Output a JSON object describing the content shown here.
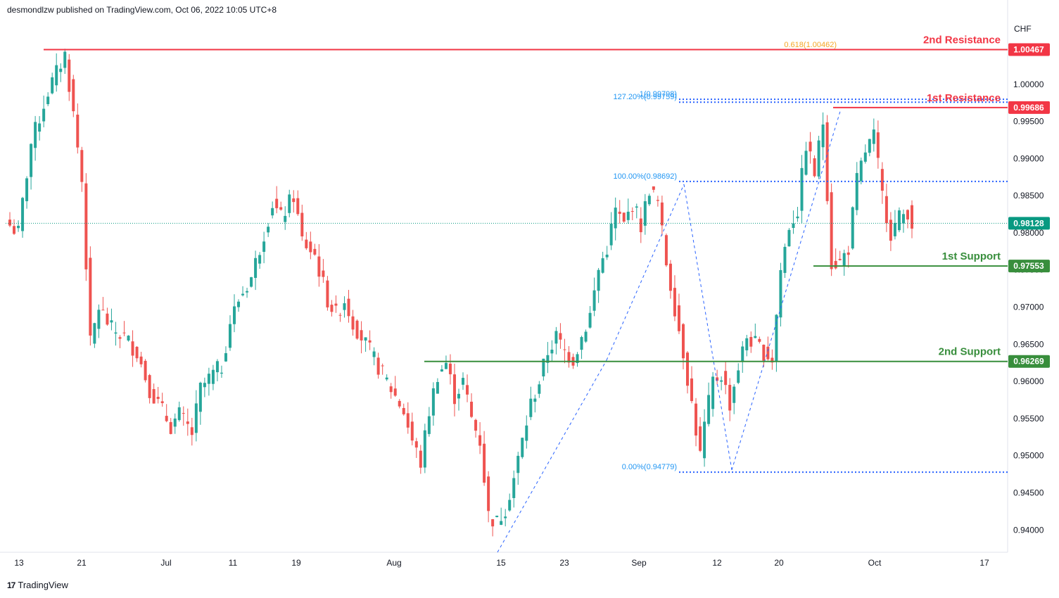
{
  "header": {
    "publisher": "desmondlzw published on TradingView.com, Oct 06, 2022 10:05 UTC+8"
  },
  "footer": {
    "brand": "TradingView",
    "logo_icon": "tradingview-logo-icon"
  },
  "colors": {
    "up": "#26a69a",
    "down": "#ef5350",
    "resistance": "#f23645",
    "support": "#388e3c",
    "fib": "#2962ff",
    "fib_text": "#2196f3",
    "fib618": "#f5a623",
    "price_label": "#089981"
  },
  "chart_data": {
    "type": "candlestick",
    "currency": "CHF",
    "y_ticks": [
      "1.00000",
      "0.99500",
      "0.99000",
      "0.98500",
      "0.98000",
      "0.97500",
      "0.97000",
      "0.96500",
      "0.96000",
      "0.95500",
      "0.95000",
      "0.94500",
      "0.94000"
    ],
    "x_ticks": [
      "13",
      "21",
      "Jul",
      "11",
      "19",
      "Aug",
      "15",
      "23",
      "Sep",
      "12",
      "20",
      "Oct",
      "17"
    ],
    "ylim": [
      0.937,
      1.0085
    ],
    "current_price": {
      "value": 0.98128,
      "label": "0.98128"
    },
    "levels": [
      {
        "name": "2nd Resistance",
        "value": 1.00467,
        "label": "1.00467",
        "kind": "resistance"
      },
      {
        "name": "1st Resistance",
        "value": 0.99686,
        "label": "0.99686",
        "kind": "resistance"
      },
      {
        "name": "1st Support",
        "value": 0.97553,
        "label": "0.97553",
        "kind": "support"
      },
      {
        "name": "2nd Support",
        "value": 0.96269,
        "label": "0.96269",
        "kind": "support"
      }
    ],
    "fib_annotations": [
      {
        "text": "0.618(1.00462)",
        "value": 1.00462
      },
      {
        "text": "1(0.99798)",
        "value": 0.99798
      },
      {
        "text": "127.20%(0.99759)",
        "value": 0.99759
      },
      {
        "text": "100.00%(0.98692)",
        "value": 0.98692
      },
      {
        "text": "0.00%(0.94779)",
        "value": 0.94779
      }
    ],
    "ohlc_anchors": [
      [
        0,
        0.981
      ],
      [
        2,
        0.98
      ],
      [
        5,
        0.992
      ],
      [
        9,
        0.999
      ],
      [
        13,
        1.004
      ],
      [
        15,
        0.996
      ],
      [
        17,
        0.987
      ],
      [
        19,
        0.965
      ],
      [
        21,
        0.97
      ],
      [
        24,
        0.967
      ],
      [
        27,
        0.966
      ],
      [
        30,
        0.964
      ],
      [
        33,
        0.959
      ],
      [
        36,
        0.956
      ],
      [
        38,
        0.954
      ],
      [
        40,
        0.9555
      ],
      [
        43,
        0.953
      ],
      [
        45,
        0.959
      ],
      [
        48,
        0.961
      ],
      [
        50,
        0.962
      ],
      [
        52,
        0.968
      ],
      [
        54,
        0.971
      ],
      [
        57,
        0.974
      ],
      [
        60,
        0.98
      ],
      [
        62,
        0.984
      ],
      [
        64,
        0.982
      ],
      [
        67,
        0.985
      ],
      [
        69,
        0.979
      ],
      [
        72,
        0.977
      ],
      [
        75,
        0.971
      ],
      [
        77,
        0.969
      ],
      [
        79,
        0.971
      ],
      [
        81,
        0.968
      ],
      [
        84,
        0.965
      ],
      [
        87,
        0.962
      ],
      [
        90,
        0.959
      ],
      [
        93,
        0.956
      ],
      [
        95,
        0.952
      ],
      [
        97,
        0.949
      ],
      [
        99,
        0.956
      ],
      [
        101,
        0.961
      ],
      [
        103,
        0.9625
      ],
      [
        105,
        0.958
      ],
      [
        107,
        0.96
      ],
      [
        109,
        0.955
      ],
      [
        111,
        0.952
      ],
      [
        113,
        0.942
      ],
      [
        115,
        0.941
      ],
      [
        117,
        0.943
      ],
      [
        119,
        0.947
      ],
      [
        121,
        0.952
      ],
      [
        123,
        0.957
      ],
      [
        125,
        0.96
      ],
      [
        127,
        0.964
      ],
      [
        129,
        0.966
      ],
      [
        131,
        0.964
      ],
      [
        133,
        0.963
      ],
      [
        135,
        0.966
      ],
      [
        137,
        0.969
      ],
      [
        139,
        0.975
      ],
      [
        141,
        0.978
      ],
      [
        143,
        0.983
      ],
      [
        145,
        0.981
      ],
      [
        147,
        0.984
      ],
      [
        149,
        0.981
      ],
      [
        151,
        0.986
      ],
      [
        153,
        0.984
      ],
      [
        155,
        0.976
      ],
      [
        157,
        0.97
      ],
      [
        159,
        0.964
      ],
      [
        161,
        0.957
      ],
      [
        163,
        0.95
      ],
      [
        164,
        0.954
      ],
      [
        166,
        0.96
      ],
      [
        168,
        0.961
      ],
      [
        170,
        0.957
      ],
      [
        172,
        0.962
      ],
      [
        174,
        0.966
      ],
      [
        176,
        0.965
      ],
      [
        178,
        0.964
      ],
      [
        180,
        0.963
      ],
      [
        182,
        0.975
      ],
      [
        184,
        0.981
      ],
      [
        186,
        0.983
      ],
      [
        188,
        0.992
      ],
      [
        190,
        0.988
      ],
      [
        192,
        0.995
      ],
      [
        194,
        0.976
      ],
      [
        196,
        0.976
      ],
      [
        198,
        0.978
      ],
      [
        200,
        0.987
      ],
      [
        202,
        0.991
      ],
      [
        204,
        0.993
      ],
      [
        206,
        0.985
      ],
      [
        208,
        0.98
      ],
      [
        210,
        0.982
      ],
      [
        212,
        0.983
      ],
      [
        213,
        0.9813
      ]
    ]
  }
}
